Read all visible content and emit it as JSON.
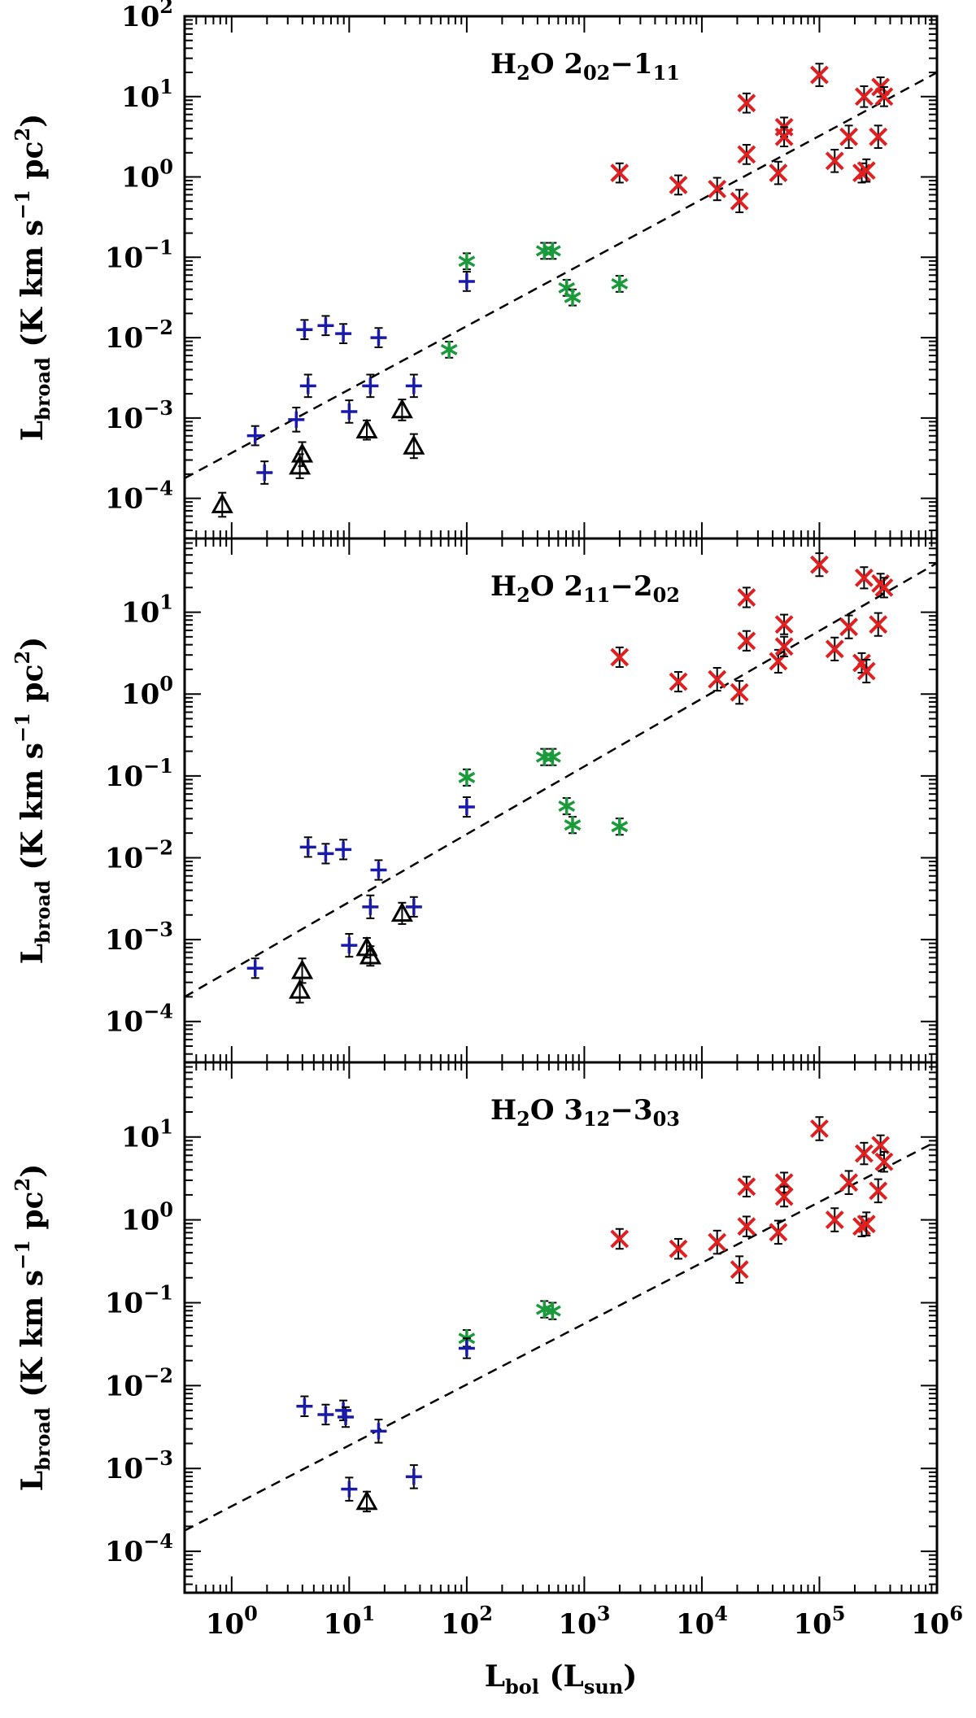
{
  "chart_data": [
    {
      "type": "scatter",
      "title_molecule": "H",
      "title_mol_sub": "2",
      "title_mol_rest": "O",
      "title_upper_main": "2",
      "title_upper_sub": "02",
      "title_dash": "−",
      "title_lower_main": "1",
      "title_lower_sub": "11",
      "ylabel_main": "L",
      "ylabel_sub": "broad",
      "ylabel_units": "(K km s",
      "ylabel_units_sup": "−1",
      "ylabel_units_pc": " pc",
      "ylabel_units_sup2": "2",
      "ylabel_close": ")",
      "xlim_log": [
        -0.4,
        6.0
      ],
      "ylim_log": [
        -4.5,
        2.0
      ],
      "yticks": [
        {
          "base": "10",
          "exp": "2"
        },
        {
          "base": "10",
          "exp": "1"
        },
        {
          "base": "10",
          "exp": "0"
        },
        {
          "base": "10",
          "exp": "−1"
        },
        {
          "base": "10",
          "exp": "−2"
        },
        {
          "base": "10",
          "exp": "−3"
        },
        {
          "base": "10",
          "exp": "−4"
        }
      ],
      "ytick_logs": [
        2,
        1,
        0,
        -1,
        -2,
        -3,
        -4
      ],
      "fit_line": {
        "log_x": [
          -0.4,
          6.0
        ],
        "log_y": [
          -3.75,
          1.3
        ]
      },
      "series": [
        {
          "name": "red-cross",
          "color": "#e02020",
          "points": [
            [
              3.3,
              0.05,
              0.12
            ],
            [
              3.8,
              -0.1,
              0.12
            ],
            [
              4.13,
              -0.15,
              0.14
            ],
            [
              4.32,
              -0.3,
              0.14
            ],
            [
              4.38,
              0.92,
              0.12
            ],
            [
              4.38,
              0.28,
              0.12
            ],
            [
              4.65,
              0.05,
              0.14
            ],
            [
              4.7,
              0.62,
              0.12
            ],
            [
              4.7,
              0.5,
              0.12
            ],
            [
              5.0,
              1.27,
              0.14
            ],
            [
              5.13,
              0.2,
              0.14
            ],
            [
              5.25,
              0.5,
              0.14
            ],
            [
              5.36,
              0.05,
              0.12
            ],
            [
              5.38,
              1.0,
              0.13
            ],
            [
              5.4,
              0.08,
              0.14
            ],
            [
              5.5,
              0.5,
              0.14
            ],
            [
              5.52,
              1.12,
              0.12
            ],
            [
              5.55,
              1.0,
              0.12
            ]
          ]
        },
        {
          "name": "green-asterisk",
          "color": "#1a9a3a",
          "points": [
            [
              1.85,
              -2.15,
              0.1
            ],
            [
              2.0,
              -1.05,
              0.1
            ],
            [
              2.66,
              -0.92,
              0.1
            ],
            [
              2.73,
              -0.92,
              0.1
            ],
            [
              2.85,
              -1.38,
              0.1
            ],
            [
              2.9,
              -1.5,
              0.1
            ],
            [
              3.3,
              -1.33,
              0.1
            ]
          ]
        },
        {
          "name": "blue-plus",
          "color": "#1a1aaa",
          "points": [
            [
              0.2,
              -3.22,
              0.12
            ],
            [
              0.28,
              -3.68,
              0.14
            ],
            [
              0.55,
              -3.02,
              0.15
            ],
            [
              0.62,
              -1.9,
              0.12
            ],
            [
              0.65,
              -2.6,
              0.14
            ],
            [
              0.8,
              -1.85,
              0.12
            ],
            [
              0.95,
              -1.95,
              0.12
            ],
            [
              1.0,
              -2.92,
              0.14
            ],
            [
              1.18,
              -2.6,
              0.14
            ],
            [
              1.25,
              -2.0,
              0.12
            ],
            [
              1.55,
              -2.6,
              0.14
            ],
            [
              2.0,
              -1.3,
              0.12
            ]
          ]
        },
        {
          "name": "black-triangle",
          "color": "#000000",
          "points": [
            [
              -0.08,
              -4.08,
              0.15
            ],
            [
              0.58,
              -3.6,
              0.15
            ],
            [
              0.6,
              -3.45,
              0.15
            ],
            [
              1.15,
              -3.15,
              0.12
            ],
            [
              1.45,
              -2.9,
              0.13
            ],
            [
              1.55,
              -3.35,
              0.15
            ]
          ]
        }
      ]
    },
    {
      "type": "scatter",
      "title_molecule": "H",
      "title_mol_sub": "2",
      "title_mol_rest": "O",
      "title_upper_main": "2",
      "title_upper_sub": "11",
      "title_dash": "−",
      "title_lower_main": "2",
      "title_lower_sub": "02",
      "ylabel_main": "L",
      "ylabel_sub": "broad",
      "ylabel_units": "(K km s",
      "ylabel_units_sup": "−1",
      "ylabel_units_pc": " pc",
      "ylabel_units_sup2": "2",
      "ylabel_close": ")",
      "xlim_log": [
        -0.4,
        6.0
      ],
      "ylim_log": [
        -4.5,
        1.9
      ],
      "yticks": [
        {
          "base": "10",
          "exp": "1"
        },
        {
          "base": "10",
          "exp": "0"
        },
        {
          "base": "10",
          "exp": "−1"
        },
        {
          "base": "10",
          "exp": "−2"
        },
        {
          "base": "10",
          "exp": "−3"
        },
        {
          "base": "10",
          "exp": "−4"
        }
      ],
      "ytick_logs": [
        1,
        0,
        -1,
        -2,
        -3,
        -4
      ],
      "fit_line": {
        "log_x": [
          -0.4,
          6.0
        ],
        "log_y": [
          -3.7,
          1.6
        ]
      },
      "series": [
        {
          "name": "red-cross",
          "color": "#e02020",
          "points": [
            [
              3.3,
              0.45,
              0.12
            ],
            [
              3.8,
              0.15,
              0.12
            ],
            [
              4.13,
              0.18,
              0.14
            ],
            [
              4.32,
              0.02,
              0.14
            ],
            [
              4.38,
              1.18,
              0.12
            ],
            [
              4.38,
              0.65,
              0.12
            ],
            [
              4.65,
              0.4,
              0.14
            ],
            [
              4.7,
              0.85,
              0.12
            ],
            [
              4.7,
              0.58,
              0.12
            ],
            [
              5.0,
              1.58,
              0.14
            ],
            [
              5.13,
              0.55,
              0.14
            ],
            [
              5.25,
              0.82,
              0.14
            ],
            [
              5.36,
              0.38,
              0.12
            ],
            [
              5.38,
              1.42,
              0.13
            ],
            [
              5.4,
              0.28,
              0.14
            ],
            [
              5.5,
              0.85,
              0.14
            ],
            [
              5.52,
              1.35,
              0.12
            ],
            [
              5.55,
              1.3,
              0.12
            ]
          ]
        },
        {
          "name": "green-asterisk",
          "color": "#1a9a3a",
          "points": [
            [
              2.0,
              -1.02,
              0.1
            ],
            [
              2.66,
              -0.77,
              0.1
            ],
            [
              2.73,
              -0.77,
              0.1
            ],
            [
              2.85,
              -1.37,
              0.1
            ],
            [
              2.9,
              -1.6,
              0.1
            ],
            [
              3.3,
              -1.62,
              0.1
            ]
          ]
        },
        {
          "name": "blue-plus",
          "color": "#1a1aaa",
          "points": [
            [
              0.2,
              -3.35,
              0.12
            ],
            [
              0.65,
              -1.87,
              0.12
            ],
            [
              0.8,
              -1.95,
              0.12
            ],
            [
              0.95,
              -1.9,
              0.12
            ],
            [
              1.0,
              -3.07,
              0.14
            ],
            [
              1.18,
              -2.6,
              0.14
            ],
            [
              1.25,
              -2.15,
              0.12
            ],
            [
              1.55,
              -2.6,
              0.12
            ],
            [
              2.0,
              -1.38,
              0.12
            ]
          ]
        },
        {
          "name": "black-triangle",
          "color": "#000000",
          "points": [
            [
              0.58,
              -3.62,
              0.15
            ],
            [
              0.6,
              -3.38,
              0.15
            ],
            [
              1.15,
              -3.1,
              0.12
            ],
            [
              1.18,
              -3.2,
              0.12
            ],
            [
              1.45,
              -2.68,
              0.13
            ]
          ]
        }
      ]
    },
    {
      "type": "scatter",
      "title_molecule": "H",
      "title_mol_sub": "2",
      "title_mol_rest": "O",
      "title_upper_main": "3",
      "title_upper_sub": "12",
      "title_dash": "−",
      "title_lower_main": "3",
      "title_lower_sub": "03",
      "ylabel_main": "L",
      "ylabel_sub": "broad",
      "ylabel_units": "(K km s",
      "ylabel_units_sup": "−1",
      "ylabel_units_pc": " pc",
      "ylabel_units_sup2": "2",
      "ylabel_close": ")",
      "xlim_log": [
        -0.4,
        6.0
      ],
      "ylim_log": [
        -4.5,
        1.9
      ],
      "yticks": [
        {
          "base": "10",
          "exp": "1"
        },
        {
          "base": "10",
          "exp": "0"
        },
        {
          "base": "10",
          "exp": "−1"
        },
        {
          "base": "10",
          "exp": "−2"
        },
        {
          "base": "10",
          "exp": "−3"
        },
        {
          "base": "10",
          "exp": "−4"
        }
      ],
      "ytick_logs": [
        1,
        0,
        -1,
        -2,
        -3,
        -4
      ],
      "fit_line": {
        "log_x": [
          -0.4,
          6.0
        ],
        "log_y": [
          -3.75,
          0.95
        ]
      },
      "series": [
        {
          "name": "red-cross",
          "color": "#e02020",
          "points": [
            [
              3.3,
              -0.23,
              0.12
            ],
            [
              3.8,
              -0.35,
              0.12
            ],
            [
              4.13,
              -0.27,
              0.14
            ],
            [
              4.32,
              -0.6,
              0.16
            ],
            [
              4.38,
              0.4,
              0.12
            ],
            [
              4.38,
              -0.08,
              0.12
            ],
            [
              4.65,
              -0.15,
              0.14
            ],
            [
              4.7,
              0.45,
              0.12
            ],
            [
              4.7,
              0.28,
              0.12
            ],
            [
              5.0,
              1.1,
              0.14
            ],
            [
              5.13,
              0.0,
              0.14
            ],
            [
              5.25,
              0.45,
              0.14
            ],
            [
              5.36,
              -0.08,
              0.12
            ],
            [
              5.38,
              0.8,
              0.13
            ],
            [
              5.4,
              -0.05,
              0.14
            ],
            [
              5.5,
              0.35,
              0.14
            ],
            [
              5.52,
              0.9,
              0.12
            ],
            [
              5.55,
              0.7,
              0.12
            ]
          ]
        },
        {
          "name": "green-asterisk",
          "color": "#1a9a3a",
          "points": [
            [
              2.0,
              -1.43,
              0.1
            ],
            [
              2.66,
              -1.08,
              0.1
            ],
            [
              2.73,
              -1.1,
              0.1
            ]
          ]
        },
        {
          "name": "blue-plus",
          "color": "#1a1aaa",
          "points": [
            [
              0.62,
              -2.25,
              0.12
            ],
            [
              0.8,
              -2.35,
              0.12
            ],
            [
              0.95,
              -2.3,
              0.12
            ],
            [
              0.97,
              -2.38,
              0.12
            ],
            [
              1.0,
              -3.25,
              0.14
            ],
            [
              1.25,
              -2.55,
              0.14
            ],
            [
              1.55,
              -3.1,
              0.14
            ],
            [
              2.0,
              -1.55,
              0.12
            ]
          ]
        },
        {
          "name": "black-triangle",
          "color": "#000000",
          "points": [
            [
              1.15,
              -3.4,
              0.12
            ]
          ]
        }
      ]
    }
  ],
  "x_axis": {
    "xticks": [
      {
        "base": "10",
        "exp": "0"
      },
      {
        "base": "10",
        "exp": "1"
      },
      {
        "base": "10",
        "exp": "2"
      },
      {
        "base": "10",
        "exp": "3"
      },
      {
        "base": "10",
        "exp": "4"
      },
      {
        "base": "10",
        "exp": "5"
      },
      {
        "base": "10",
        "exp": "6"
      }
    ],
    "xtick_logs": [
      0,
      1,
      2,
      3,
      4,
      5,
      6
    ],
    "xlabel_main": "L",
    "xlabel_sub": "bol",
    "xlabel_units": "(L",
    "xlabel_units_sub": "sun",
    "xlabel_close": ")"
  }
}
